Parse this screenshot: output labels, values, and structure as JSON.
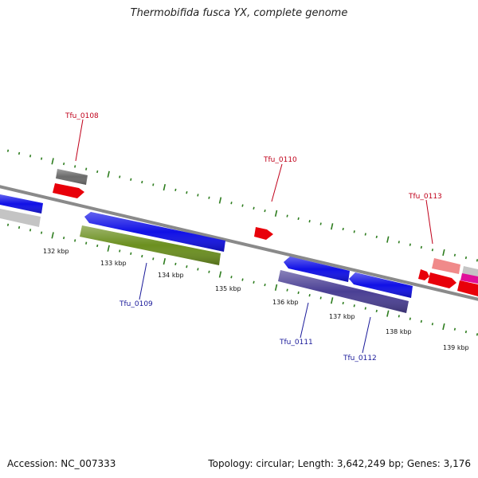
{
  "title": "Thermobifida fusca YX, complete genome",
  "footer": {
    "accession": "Accession: NC_007333",
    "summary": "Topology: circular; Length: 3,642,249 bp; Genes: 3,176"
  },
  "colors": {
    "backbone": "#8a8a8a",
    "tick": "#2e7d1f",
    "label_forward": "#c0001a",
    "label_reverse": "#1a1a9a",
    "red": "#e8000a",
    "blue": "#1010e6",
    "gray": "#6b6b6b",
    "lightgray": "#c4c4c4",
    "olive": "#6b8f1f",
    "purple": "#4a3f94",
    "pink": "#f08a8a",
    "magenta": "#e0109a"
  },
  "scale_labels": [
    "132 kbp",
    "133 kbp",
    "134 kbp",
    "135 kbp",
    "136 kbp",
    "137 kbp",
    "138 kbp",
    "139 kbp"
  ],
  "gene_labels": {
    "tfu_0108": "Tfu_0108",
    "tfu_0109": "Tfu_0109",
    "tfu_0110": "Tfu_0110",
    "tfu_0111": "Tfu_0111",
    "tfu_0112": "Tfu_0112",
    "tfu_0113": "Tfu_0113"
  }
}
